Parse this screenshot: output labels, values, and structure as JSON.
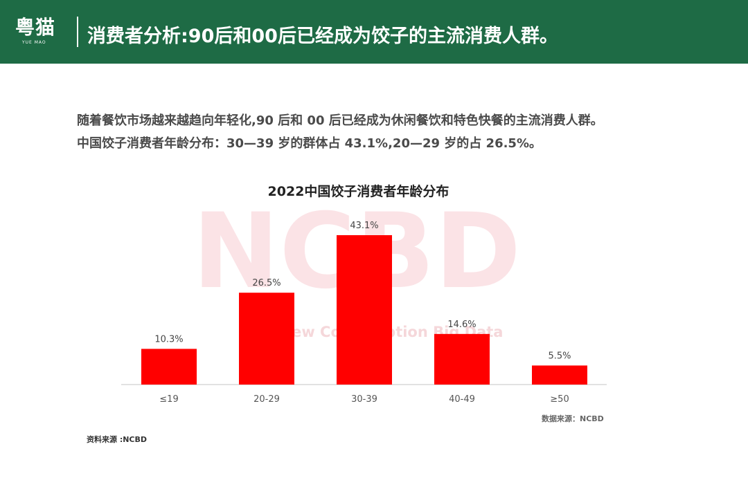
{
  "header": {
    "logo": "粤猫",
    "logo_sub": "YUE MAO",
    "title": "消费者分析:90后和00后已经成为饺子的主流消费人群。"
  },
  "intro": {
    "line1": "随着餐饮市场越来越趋向年轻化,90 后和 00 后已经成为休闲餐饮和特色快餐的主流消费人群。",
    "line2": "中国饺子消费者年龄分布：30—39 岁的群体占 43.1%,20—29 岁的占 26.5%。"
  },
  "chart_data": {
    "type": "bar",
    "title": "2022中国饺子消费者年龄分布",
    "categories": [
      "≤19",
      "20-29",
      "30-39",
      "40-49",
      "≥50"
    ],
    "values": [
      10.3,
      26.5,
      43.1,
      14.6,
      5.5
    ],
    "value_labels": [
      "10.3%",
      "26.5%",
      "43.1%",
      "14.6%",
      "5.5%"
    ],
    "ylim": [
      0,
      50
    ],
    "grid": false,
    "bar_color": "#ff0000",
    "watermark": "NCBD",
    "watermark_sub": "New Consumption Big Data",
    "source": "数据来源：NCBD"
  },
  "footer": {
    "source": "资料来源 :NCBD"
  },
  "colors": {
    "header_bg": "#1e6b45",
    "bar": "#ff0000",
    "watermark": "#fbe3e6"
  }
}
